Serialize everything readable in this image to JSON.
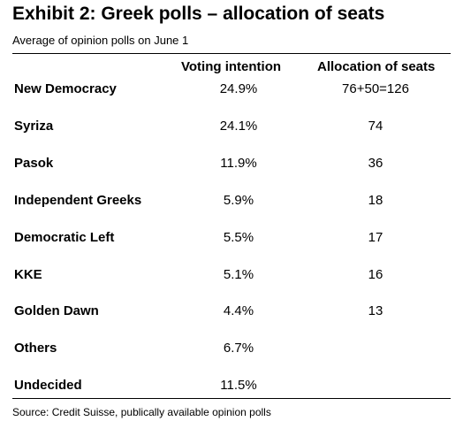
{
  "title": "Exhibit 2: Greek polls – allocation of seats",
  "subtitle": "Average of opinion polls on June 1",
  "columns": {
    "voting": "Voting intention",
    "seats": "Allocation of seats"
  },
  "chart_data": {
    "type": "table",
    "title": "Exhibit 2: Greek polls – allocation of seats",
    "subtitle": "Average of opinion polls on June 1",
    "columns": [
      "",
      "Voting intention",
      "Allocation of seats"
    ],
    "rows": [
      {
        "party": "New Democracy",
        "voting": "24.9%",
        "seats": "76+50=126"
      },
      {
        "party": "Syriza",
        "voting": "24.1%",
        "seats": "74"
      },
      {
        "party": "Pasok",
        "voting": "11.9%",
        "seats": "36"
      },
      {
        "party": "Independent Greeks",
        "voting": "5.9%",
        "seats": "18"
      },
      {
        "party": "Democratic Left",
        "voting": "5.5%",
        "seats": "17"
      },
      {
        "party": "KKE",
        "voting": "5.1%",
        "seats": "16"
      },
      {
        "party": "Golden Dawn",
        "voting": "4.4%",
        "seats": "13"
      },
      {
        "party": "Others",
        "voting": "6.7%",
        "seats": ""
      },
      {
        "party": "Undecided",
        "voting": "11.5%",
        "seats": ""
      }
    ],
    "source": "Source: Credit Suisse, publically available opinion polls"
  },
  "footer": {
    "source": "Source: Credit Suisse, publically available opinion polls"
  }
}
